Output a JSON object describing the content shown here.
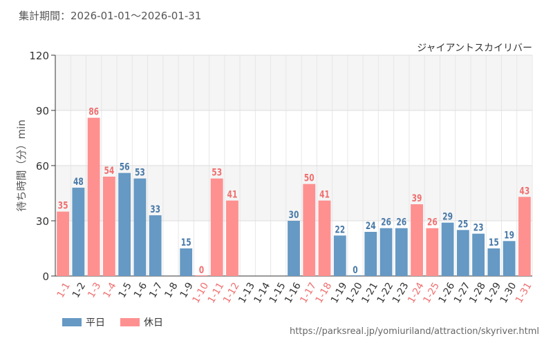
{
  "period": "集計期間：2026-01-01～2026-01-31",
  "chart_data": {
    "type": "bar",
    "title": "ジャイアントスカイリバー",
    "ylabel": "待ち時間（分）min",
    "ylim": [
      0,
      120
    ],
    "yticks": [
      0,
      30,
      60,
      90,
      120
    ],
    "grid": true,
    "categories": [
      "1-1",
      "1-2",
      "1-3",
      "1-4",
      "1-5",
      "1-6",
      "1-7",
      "1-8",
      "1-9",
      "1-10",
      "1-11",
      "1-12",
      "1-13",
      "1-14",
      "1-15",
      "1-16",
      "1-17",
      "1-18",
      "1-19",
      "1-20",
      "1-21",
      "1-22",
      "1-23",
      "1-24",
      "1-25",
      "1-26",
      "1-27",
      "1-28",
      "1-29",
      "1-30",
      "1-31"
    ],
    "values": [
      35,
      48,
      86,
      54,
      56,
      53,
      33,
      null,
      15,
      0,
      53,
      41,
      null,
      null,
      null,
      30,
      50,
      41,
      22,
      0,
      24,
      26,
      26,
      39,
      26,
      29,
      25,
      23,
      15,
      19,
      43
    ],
    "day_type": [
      "holiday",
      "weekday",
      "holiday",
      "holiday",
      "weekday",
      "weekday",
      "weekday",
      "weekday",
      "weekday",
      "holiday",
      "holiday",
      "holiday",
      "weekday",
      "weekday",
      "weekday",
      "weekday",
      "holiday",
      "holiday",
      "weekday",
      "weekday",
      "weekday",
      "weekday",
      "weekday",
      "holiday",
      "holiday",
      "weekday",
      "weekday",
      "weekday",
      "weekday",
      "weekday",
      "holiday"
    ],
    "series": [
      {
        "name": "平日",
        "key": "weekday",
        "color": "#6699c4"
      },
      {
        "name": "休日",
        "key": "holiday",
        "color": "#ff9090"
      }
    ],
    "label_colors": {
      "weekday": "#4a7aa8",
      "holiday": "#f07070"
    },
    "tick_colors": {
      "weekday": "#333333",
      "holiday": "#f07070"
    }
  },
  "source": "https://parksreal.jp/yomiuriland/attraction/skyriver.html"
}
